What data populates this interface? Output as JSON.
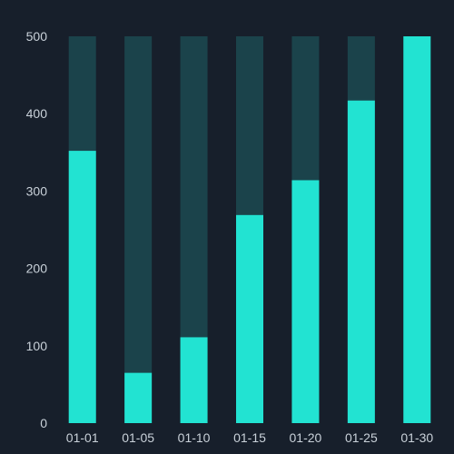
{
  "chart_data": {
    "type": "bar",
    "categories": [
      "01-01",
      "01-05",
      "01-10",
      "01-15",
      "01-20",
      "01-25",
      "01-30"
    ],
    "series": [
      {
        "values": [
          352,
          65,
          111,
          269,
          314,
          417,
          500
        ]
      },
      {
        "values": [
          500,
          500,
          500,
          500,
          500,
          500,
          500
        ]
      }
    ],
    "ylim": [
      0,
      500
    ],
    "yticks": [
      0,
      100,
      200,
      300,
      400,
      500
    ],
    "grid": false,
    "colors": {
      "background": "#171f2b",
      "bar": "#22e3d2",
      "track": "#1b434b",
      "text": "#c9d1d9"
    }
  }
}
